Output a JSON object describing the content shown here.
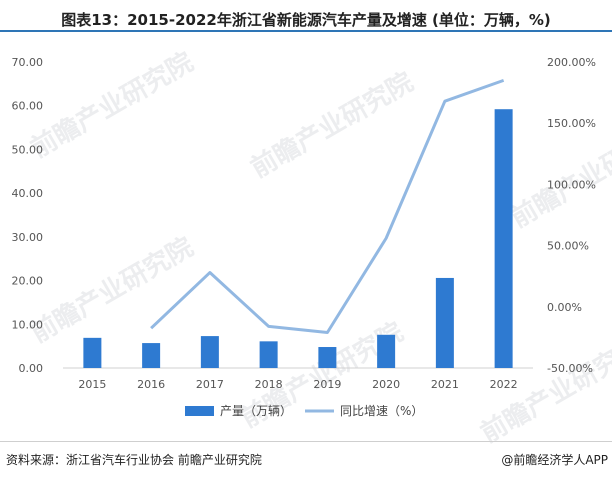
{
  "title": "图表13：2015-2022年浙江省新能源汽车产量及增速 (单位：万辆，%)",
  "source": "资料来源：浙江省汽车行业协会 前瞻产业研究院",
  "brand": "@前瞻经济学人APP",
  "watermark": "前瞻产业研究院",
  "colors": {
    "bar": "#2e7ad1",
    "line": "#92b8e2",
    "accent": "#2e75b6"
  },
  "chart_data": {
    "type": "bar",
    "categories": [
      "2015",
      "2016",
      "2017",
      "2018",
      "2019",
      "2020",
      "2021",
      "2022"
    ],
    "series": [
      {
        "name": "产量（万辆）",
        "type": "bar",
        "axis": "left",
        "values": [
          6.9,
          5.7,
          7.3,
          6.1,
          4.8,
          7.6,
          20.6,
          59.2
        ]
      },
      {
        "name": "同比增速（%）",
        "type": "line",
        "axis": "right",
        "values": [
          null,
          -17.5,
          28.0,
          -16.0,
          -21.0,
          56.0,
          168.0,
          185.0
        ]
      }
    ],
    "ylim_left": [
      0,
      70
    ],
    "ylim_right": [
      -50,
      200
    ],
    "left_ticks": [
      "0.00",
      "10.00",
      "20.00",
      "30.00",
      "40.00",
      "50.00",
      "60.00",
      "70.00"
    ],
    "right_ticks": [
      "-50.00%",
      "0.00%",
      "50.00%",
      "100.00%",
      "150.00%",
      "200.00%"
    ],
    "xlabel": "",
    "ylabel": "",
    "grid": false,
    "legend_position": "bottom"
  }
}
